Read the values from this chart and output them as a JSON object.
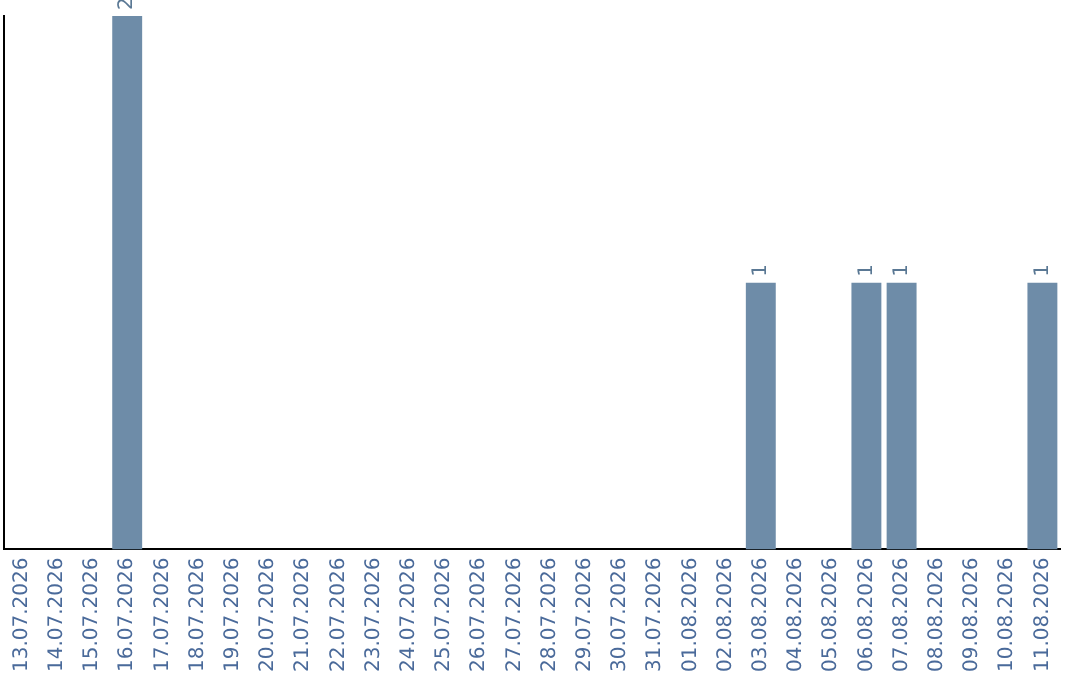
{
  "chart_data": {
    "type": "bar",
    "categories": [
      "13.07.2026",
      "14.07.2026",
      "15.07.2026",
      "16.07.2026",
      "17.07.2026",
      "18.07.2026",
      "19.07.2026",
      "20.07.2026",
      "21.07.2026",
      "22.07.2026",
      "23.07.2026",
      "24.07.2026",
      "25.07.2026",
      "26.07.2026",
      "27.07.2026",
      "28.07.2026",
      "29.07.2026",
      "30.07.2026",
      "31.07.2026",
      "01.08.2026",
      "02.08.2026",
      "03.08.2026",
      "04.08.2026",
      "05.08.2026",
      "06.08.2026",
      "07.08.2026",
      "08.08.2026",
      "09.08.2026",
      "10.08.2026",
      "11.08.2026"
    ],
    "values": [
      null,
      null,
      null,
      2,
      null,
      null,
      null,
      null,
      null,
      null,
      null,
      null,
      null,
      null,
      null,
      null,
      null,
      null,
      null,
      null,
      null,
      1,
      null,
      null,
      1,
      1,
      null,
      null,
      null,
      1
    ],
    "color": "#6e8ca8",
    "data_labels": true,
    "tick_labels": "x",
    "grid": false,
    "legend": false
  }
}
